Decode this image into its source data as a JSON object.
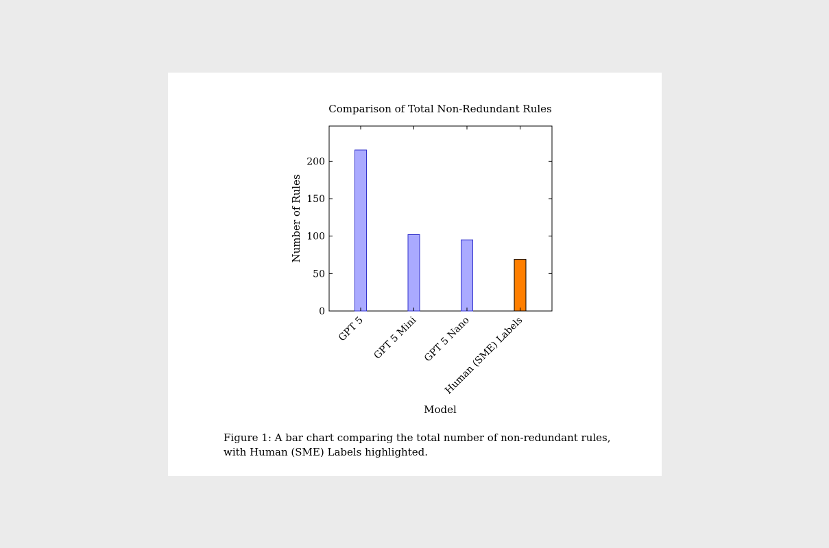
{
  "chart_data": {
    "type": "bar",
    "title": "Comparison of Total Non-Redundant Rules",
    "xlabel": "Model",
    "ylabel": "Number of Rules",
    "categories": [
      "GPT 5",
      "GPT 5 Mini",
      "GPT 5 Nano",
      "Human (SME) Labels"
    ],
    "values": [
      215,
      102,
      95,
      69
    ],
    "highlight_index": 3,
    "ylim": [
      0,
      247
    ],
    "yticks": [
      0,
      50,
      100,
      150,
      200
    ],
    "grid": false,
    "colors": {
      "bar_fill": "#aaaaff",
      "bar_stroke": "#3333cc",
      "highlight_fill": "#ff7f00",
      "highlight_stroke": "#000000"
    }
  },
  "caption": "Figure 1: A bar chart comparing the total number of non-redundant rules, with Human (SME) Labels highlighted."
}
